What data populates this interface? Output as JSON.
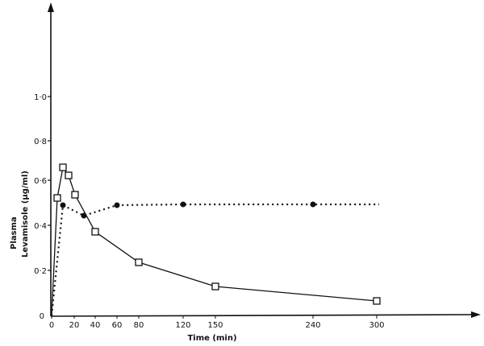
{
  "chart_data": {
    "type": "line",
    "title": "",
    "xlabel": "Time (min)",
    "ylabel_line1": "Plasma",
    "ylabel_line2": "Levamisole  (µg/ml)",
    "ylabel": "Plasma Levamisole (µg/ml)",
    "xlim": [
      0,
      300
    ],
    "ylim": [
      0,
      1.0
    ],
    "grid": false,
    "legend": null,
    "x_ticks": [
      {
        "value": 0,
        "label": "0",
        "px": 64
      },
      {
        "value": 20,
        "label": "20",
        "px": 92
      },
      {
        "value": 40,
        "label": "40",
        "px": 118
      },
      {
        "value": 60,
        "label": "60",
        "px": 145
      },
      {
        "value": 80,
        "label": "80",
        "px": 172
      },
      {
        "value": 120,
        "label": "120",
        "px": 227
      },
      {
        "value": 150,
        "label": "150",
        "px": 267
      },
      {
        "value": 240,
        "label": "240",
        "px": 388
      },
      {
        "value": 300,
        "label": "300",
        "px": 467
      }
    ],
    "y_ticks": [
      {
        "value": 0,
        "label": "0",
        "px": 392
      },
      {
        "value": 0.2,
        "label": "0·2",
        "px": 336
      },
      {
        "value": 0.4,
        "label": "0·4",
        "px": 280
      },
      {
        "value": 0.6,
        "label": "0·6",
        "px": 224
      },
      {
        "value": 0.8,
        "label": "0·8",
        "px": 175
      },
      {
        "value": 1.0,
        "label": "1·0",
        "px": 120
      }
    ],
    "series": [
      {
        "name": "open squares (solid line)",
        "marker": "square-open",
        "line": "solid",
        "x": [
          0,
          5,
          10,
          15,
          20,
          40,
          80,
          150,
          300
        ],
        "values": [
          0.0,
          0.53,
          0.68,
          0.64,
          0.55,
          0.39,
          0.24,
          0.13,
          0.06
        ],
        "px": [
          [
            64,
            392
          ],
          [
            71,
            246
          ],
          [
            78,
            208
          ],
          [
            85,
            218
          ],
          [
            93,
            242
          ],
          [
            118,
            288
          ],
          [
            172,
            326
          ],
          [
            267,
            356
          ],
          [
            467,
            374
          ]
        ]
      },
      {
        "name": "filled circles (dotted line)",
        "marker": "circle-filled",
        "line": "dotted",
        "x": [
          0,
          10,
          30,
          60,
          120,
          240,
          300
        ],
        "values": [
          0.0,
          0.5,
          0.45,
          0.5,
          0.5,
          0.5,
          0.5
        ],
        "px": [
          [
            64,
            392
          ],
          [
            78,
            255
          ],
          [
            104,
            268
          ],
          [
            145,
            255
          ],
          [
            227,
            254
          ],
          [
            388,
            254
          ],
          [
            470,
            254
          ]
        ],
        "marker_indices": [
          1,
          2,
          3,
          4,
          5
        ]
      }
    ]
  }
}
